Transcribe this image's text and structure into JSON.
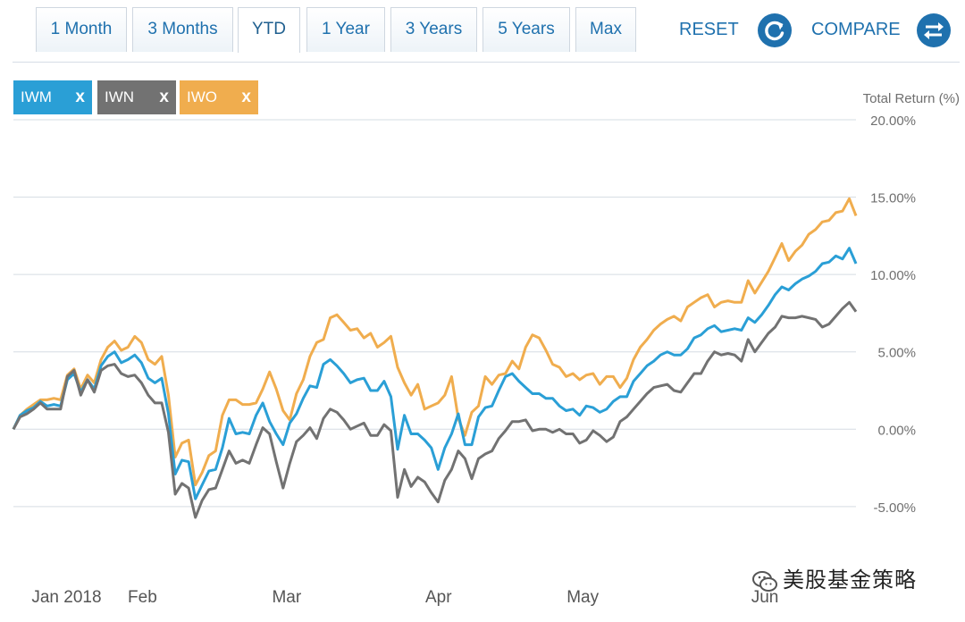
{
  "toolbar": {
    "tabs": [
      {
        "label": "1 Month"
      },
      {
        "label": "3 Months"
      },
      {
        "label": "YTD",
        "active": true
      },
      {
        "label": "1 Year"
      },
      {
        "label": "3 Years"
      },
      {
        "label": "5 Years"
      },
      {
        "label": "Max"
      }
    ],
    "reset_label": "RESET",
    "compare_label": "COMPARE",
    "reset_icon": "refresh-icon",
    "compare_icon": "swap-arrows-icon"
  },
  "tickers": [
    {
      "symbol": "IWM",
      "remove": "x",
      "color": "#2a9fd6"
    },
    {
      "symbol": "IWN",
      "remove": "x",
      "color": "#727272"
    },
    {
      "symbol": "IWO",
      "remove": "x",
      "color": "#f0ad4e"
    }
  ],
  "chart_data": {
    "type": "line",
    "ylabel": "Total Return (%)",
    "yticks": [
      "20.00%",
      "15.00%",
      "10.00%",
      "5.00%",
      "0.00%",
      "-5.00%"
    ],
    "ytick_values": [
      20,
      15,
      10,
      5,
      0,
      -5
    ],
    "ylim": [
      -9.8,
      20
    ],
    "xlim": [
      0,
      111
    ],
    "xticks": [
      {
        "label": "Jan 2018",
        "x": 7
      },
      {
        "label": "Feb",
        "x": 17
      },
      {
        "label": "Mar",
        "x": 36
      },
      {
        "label": "Apr",
        "x": 56
      },
      {
        "label": "May",
        "x": 75
      },
      {
        "label": "Jun",
        "x": 99
      }
    ],
    "grid": true,
    "series": [
      {
        "name": "IWO",
        "color": "#f0ad4e",
        "values": [
          0,
          0.9,
          1.3,
          1.6,
          1.9,
          1.9,
          2.0,
          1.9,
          3.5,
          3.9,
          2.6,
          3.5,
          3.0,
          4.5,
          5.3,
          5.7,
          5.1,
          5.3,
          6.0,
          5.6,
          4.5,
          4.2,
          4.7,
          2.2,
          -1.8,
          -0.9,
          -0.7,
          -3.6,
          -2.8,
          -1.7,
          -1.4,
          0.9,
          1.9,
          1.9,
          1.6,
          1.6,
          1.7,
          2.6,
          3.7,
          2.6,
          1.2,
          0.6,
          2.3,
          3.2,
          4.7,
          5.6,
          5.8,
          7.2,
          7.4,
          6.9,
          6.4,
          6.5,
          5.9,
          6.2,
          5.3,
          5.6,
          6.0,
          4.0,
          3.0,
          2.2,
          2.9,
          1.3,
          1.5,
          1.7,
          2.2,
          3.4,
          0.7,
          -0.4,
          1.1,
          1.5,
          3.4,
          2.9,
          3.5,
          3.6,
          4.4,
          3.9,
          5.3,
          6.1,
          5.9,
          5.1,
          4.2,
          4.0,
          3.4,
          3.6,
          3.2,
          3.5,
          3.6,
          2.9,
          3.4,
          3.4,
          2.7,
          3.3,
          4.5,
          5.3,
          5.8,
          6.4,
          6.8,
          7.1,
          7.3,
          7.0,
          7.9,
          8.2,
          8.5,
          8.7,
          7.9,
          8.2,
          8.3,
          8.2,
          8.2,
          9.6,
          8.8,
          9.5,
          10.2,
          11.1,
          12.0,
          10.9,
          11.5,
          11.9,
          12.6,
          12.9,
          13.4,
          13.5,
          14.0,
          14.1,
          14.9,
          13.8
        ]
      },
      {
        "name": "IWM",
        "color": "#2a9fd6",
        "values": [
          0,
          0.9,
          1.2,
          1.4,
          1.8,
          1.5,
          1.6,
          1.5,
          3.2,
          3.6,
          2.4,
          3.2,
          2.6,
          4.1,
          4.7,
          5.0,
          4.3,
          4.5,
          4.8,
          4.3,
          3.3,
          3.0,
          3.3,
          1.0,
          -2.9,
          -2.0,
          -2.1,
          -4.5,
          -3.6,
          -2.7,
          -2.6,
          -1.2,
          0.7,
          -0.3,
          -0.2,
          -0.3,
          0.9,
          1.7,
          0.5,
          -0.3,
          -1.0,
          0.4,
          1.0,
          2.0,
          2.8,
          2.7,
          4.2,
          4.5,
          4.1,
          3.6,
          3.0,
          3.2,
          3.3,
          2.5,
          2.5,
          3.1,
          2.1,
          -1.3,
          0.9,
          -0.3,
          -0.3,
          -0.7,
          -1.2,
          -2.6,
          -1.2,
          -0.3,
          1.0,
          -1.0,
          -1.0,
          0.8,
          1.4,
          1.5,
          2.5,
          3.4,
          3.6,
          3.1,
          2.7,
          2.3,
          2.3,
          2.0,
          2.0,
          1.5,
          1.2,
          1.3,
          0.9,
          1.5,
          1.4,
          1.1,
          1.3,
          1.8,
          2.1,
          2.1,
          3.1,
          3.6,
          4.1,
          4.4,
          4.8,
          5.0,
          4.8,
          4.8,
          5.2,
          5.9,
          6.1,
          6.5,
          6.7,
          6.3,
          6.4,
          6.5,
          6.4,
          7.2,
          6.9,
          7.4,
          8.0,
          8.7,
          9.2,
          9.0,
          9.4,
          9.7,
          9.9,
          10.2,
          10.7,
          10.8,
          11.2,
          11.0,
          11.7,
          10.7
        ]
      },
      {
        "name": "IWN",
        "color": "#727272",
        "values": [
          0,
          0.8,
          1.0,
          1.3,
          1.7,
          1.3,
          1.3,
          1.3,
          3.4,
          3.8,
          2.2,
          3.2,
          2.4,
          3.8,
          4.1,
          4.2,
          3.6,
          3.4,
          3.5,
          3.0,
          2.2,
          1.7,
          1.7,
          -0.2,
          -4.2,
          -3.5,
          -3.8,
          -5.7,
          -4.6,
          -3.9,
          -3.8,
          -2.6,
          -1.4,
          -2.2,
          -2.0,
          -2.2,
          -1.0,
          0.1,
          -0.3,
          -2.1,
          -3.8,
          -2.2,
          -0.8,
          -0.4,
          0.1,
          -0.6,
          0.7,
          1.3,
          1.1,
          0.6,
          0.0,
          0.2,
          0.4,
          -0.4,
          -0.4,
          0.3,
          -0.1,
          -4.4,
          -2.6,
          -3.7,
          -3.1,
          -3.4,
          -4.1,
          -4.7,
          -3.3,
          -2.6,
          -1.4,
          -1.9,
          -3.2,
          -1.9,
          -1.6,
          -1.4,
          -0.6,
          -0.1,
          0.5,
          0.5,
          0.6,
          -0.1,
          0.0,
          0.0,
          -0.2,
          0.0,
          -0.3,
          -0.3,
          -0.9,
          -0.7,
          -0.1,
          -0.4,
          -0.8,
          -0.5,
          0.5,
          0.8,
          1.3,
          1.8,
          2.3,
          2.7,
          2.8,
          2.9,
          2.5,
          2.4,
          3.0,
          3.6,
          3.6,
          4.4,
          5.0,
          4.8,
          4.9,
          4.8,
          4.4,
          5.8,
          5.0,
          5.6,
          6.2,
          6.6,
          7.3,
          7.2,
          7.2,
          7.3,
          7.2,
          7.1,
          6.6,
          6.8,
          7.3,
          7.8,
          8.2,
          7.6
        ]
      }
    ]
  },
  "watermark": {
    "text": "美股基金策略",
    "icon": "wechat-icon"
  }
}
